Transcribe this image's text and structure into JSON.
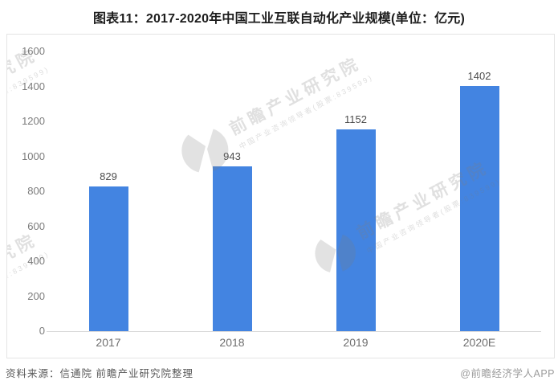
{
  "page": {
    "title": "图表11：2017-2020年中国工业互联自动化产业规模(单位：亿元)"
  },
  "chart_data": {
    "type": "bar",
    "title": "图表11：2017-2020年中国工业互联自动化产业规模(单位：亿元)",
    "categories": [
      "2017",
      "2018",
      "2019",
      "2020E"
    ],
    "values": [
      829,
      943,
      1152,
      1402
    ],
    "unit": "亿元",
    "xlabel": "",
    "ylabel": "",
    "ylim": [
      0,
      1600
    ],
    "yticks": [
      0,
      200,
      400,
      600,
      800,
      1000,
      1200,
      1400,
      1600
    ],
    "grid": false,
    "legend": "none",
    "value_labels_shown": true
  },
  "colors": {
    "bar": "#4384E1",
    "axis_line": "#d9d9d9",
    "plot_border": "#e4e4e4",
    "title_text": "#1d1d1d",
    "tick_text": "#7c7c7c"
  },
  "watermark": {
    "brand": "前瞻产业研究院",
    "tagline": "中国产业咨询领导者(股票:839599)"
  },
  "footer": {
    "source": "资料来源：信通院 前瞻产业研究院整理",
    "credit": "@前瞻经济学人APP"
  }
}
